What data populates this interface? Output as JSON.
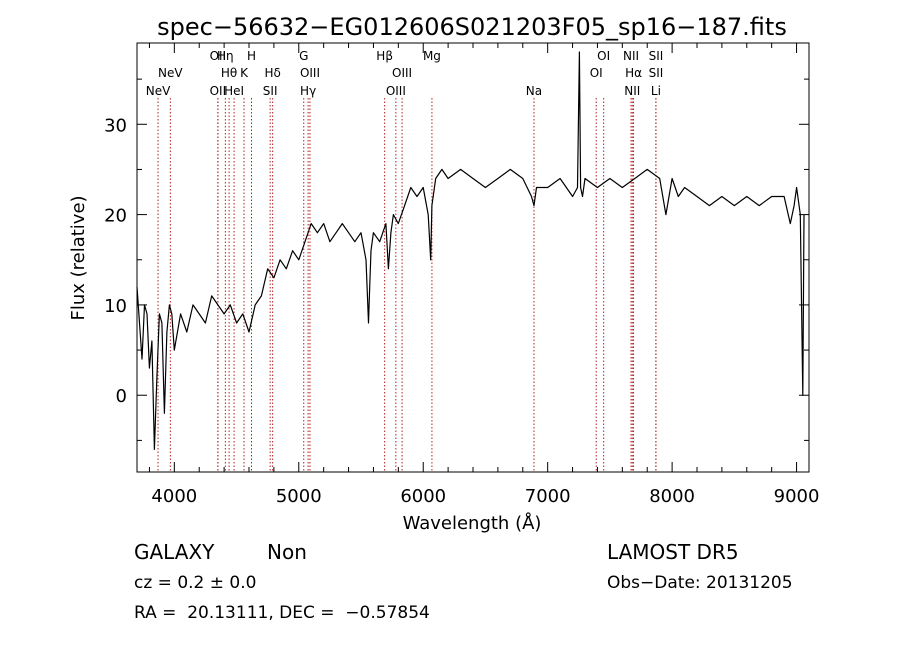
{
  "chart_data": {
    "type": "line",
    "title": "spec−56632−EG012606S021203F05_sp16−187.fits",
    "xlabel": "Wavelength (Å)",
    "ylabel": "Flux (relative)",
    "xlim": [
      3700,
      9100
    ],
    "ylim": [
      -8.5,
      39
    ],
    "x_ticks": [
      4000,
      5000,
      6000,
      7000,
      8000,
      9000
    ],
    "y_ticks": [
      0,
      10,
      20,
      30
    ],
    "line_color": "#000000",
    "marker_color": "#b22222",
    "emission_lines": [
      {
        "label": "NeV",
        "wavelength": 3869,
        "row": 3
      },
      {
        "label": "NeV",
        "wavelength": 3968,
        "row": 2
      },
      {
        "label": "OII",
        "wavelength": 4350,
        "row": 1
      },
      {
        "label": "OII",
        "wavelength": 4350,
        "row": 3
      },
      {
        "label": "Hη",
        "wavelength": 4410,
        "row": 1
      },
      {
        "label": "Hθ",
        "wavelength": 4440,
        "row": 2
      },
      {
        "label": "HeI",
        "wavelength": 4480,
        "row": 3
      },
      {
        "label": "K",
        "wavelength": 4560,
        "row": 2
      },
      {
        "label": "H",
        "wavelength": 4620,
        "row": 1
      },
      {
        "label": "Hδ",
        "wavelength": 4790,
        "row": 2
      },
      {
        "label": "SII",
        "wavelength": 4770,
        "row": 3
      },
      {
        "label": "G",
        "wavelength": 5040,
        "row": 1
      },
      {
        "label": "OIII",
        "wavelength": 5090,
        "row": 2
      },
      {
        "label": "Hγ",
        "wavelength": 5075,
        "row": 3
      },
      {
        "label": "Hβ",
        "wavelength": 5690,
        "row": 1
      },
      {
        "label": "OIII",
        "wavelength": 5830,
        "row": 2
      },
      {
        "label": "OIII",
        "wavelength": 5780,
        "row": 3
      },
      {
        "label": "Mg",
        "wavelength": 6070,
        "row": 1
      },
      {
        "label": "Na",
        "wavelength": 6890,
        "row": 3
      },
      {
        "label": "OI",
        "wavelength": 7450,
        "row": 1
      },
      {
        "label": "OI",
        "wavelength": 7390,
        "row": 2
      },
      {
        "label": "NII",
        "wavelength": 7670,
        "row": 1
      },
      {
        "label": "Hα",
        "wavelength": 7690,
        "row": 2
      },
      {
        "label": "NII",
        "wavelength": 7680,
        "row": 3
      },
      {
        "label": "SII",
        "wavelength": 7870,
        "row": 1
      },
      {
        "label": "SII",
        "wavelength": 7870,
        "row": 2
      },
      {
        "label": "Li",
        "wavelength": 7870,
        "row": 3
      }
    ],
    "series": [
      {
        "x": [
          3700,
          3720,
          3740,
          3760,
          3780,
          3800,
          3820,
          3840,
          3860,
          3880,
          3900,
          3920,
          3940,
          3960,
          3980,
          4000,
          4050,
          4100,
          4150,
          4200,
          4250,
          4300,
          4350,
          4400,
          4450,
          4500,
          4550,
          4600,
          4650,
          4700,
          4750,
          4800,
          4850,
          4900,
          4950,
          5000,
          5050,
          5100,
          5150,
          5200,
          5250,
          5300,
          5350,
          5400,
          5450,
          5500,
          5540,
          5560,
          5570,
          5580,
          5600,
          5650,
          5700,
          5720,
          5740,
          5760,
          5800,
          5850,
          5900,
          5950,
          6000,
          6040,
          6060,
          6070,
          6100,
          6150,
          6200,
          6300,
          6400,
          6500,
          6600,
          6700,
          6800,
          6870,
          6890,
          6910,
          7000,
          7100,
          7200,
          7240,
          7255,
          7265,
          7280,
          7300,
          7400,
          7500,
          7600,
          7700,
          7800,
          7900,
          7950,
          8000,
          8050,
          8100,
          8200,
          8300,
          8400,
          8500,
          8600,
          8700,
          8800,
          8900,
          8950,
          8980,
          9000,
          9030,
          9050,
          9060
        ],
        "y": [
          12,
          8,
          4,
          10,
          9,
          3,
          6,
          -6,
          2,
          9,
          8,
          -2,
          7,
          10,
          9,
          5,
          9,
          7,
          10,
          9,
          8,
          11,
          10,
          9,
          10,
          8,
          9,
          7,
          10,
          11,
          14,
          13,
          15,
          14,
          16,
          15,
          17,
          19,
          18,
          19,
          17,
          18,
          19,
          18,
          17,
          18,
          15,
          8,
          12,
          16,
          18,
          17,
          19,
          14,
          18,
          20,
          19,
          21,
          23,
          22,
          23,
          20,
          15,
          21,
          24,
          25,
          24,
          25,
          24,
          23,
          24,
          25,
          24,
          22,
          21,
          23,
          23,
          24,
          22,
          23,
          38,
          23,
          22,
          24,
          23,
          24,
          23,
          24,
          25,
          24,
          20,
          24,
          22,
          23,
          22,
          21,
          22,
          21,
          22,
          21,
          22,
          22,
          19,
          21,
          23,
          20,
          0,
          20
        ]
      }
    ]
  },
  "info": {
    "object_class": "GALAXY",
    "subclass": "Non",
    "survey": "LAMOST DR5",
    "redshift": "cz = 0.2 ± 0.0",
    "obs_date": "Obs−Date: 20131205",
    "coords": "RA =  20.13111, DEC =  −0.57854"
  }
}
